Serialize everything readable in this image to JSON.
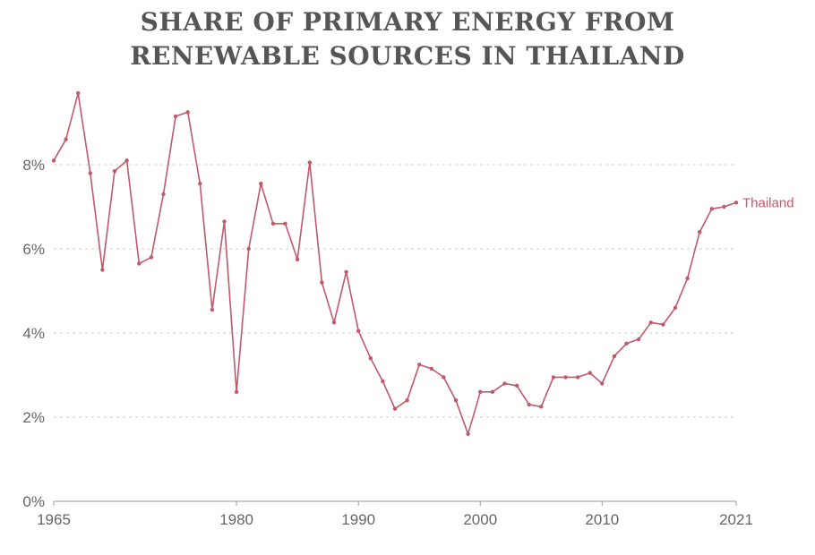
{
  "chart_data": {
    "type": "line",
    "title_lines": [
      "SHARE OF PRIMARY ENERGY FROM",
      "RENEWABLE SOURCES IN THAILAND"
    ],
    "xlabel": "",
    "ylabel": "",
    "xlim": [
      1965,
      2021
    ],
    "ylim": [
      0,
      10
    ],
    "x_ticks": [
      1965,
      1980,
      1990,
      2000,
      2010,
      2021
    ],
    "y_ticks": [
      0,
      2,
      4,
      6,
      8
    ],
    "y_tick_labels": [
      "0%",
      "2%",
      "4%",
      "6%",
      "8%"
    ],
    "grid": "horizontal-dotted",
    "series": [
      {
        "name": "Thailand",
        "color": "#c0596b",
        "x": [
          1965,
          1966,
          1967,
          1968,
          1969,
          1970,
          1971,
          1972,
          1973,
          1974,
          1975,
          1976,
          1977,
          1978,
          1979,
          1980,
          1981,
          1982,
          1983,
          1984,
          1985,
          1986,
          1987,
          1988,
          1989,
          1990,
          1991,
          1992,
          1993,
          1994,
          1995,
          1996,
          1997,
          1998,
          1999,
          2000,
          2001,
          2002,
          2003,
          2004,
          2005,
          2006,
          2007,
          2008,
          2009,
          2010,
          2011,
          2012,
          2013,
          2014,
          2015,
          2016,
          2017,
          2018,
          2019,
          2020,
          2021
        ],
        "y": [
          8.1,
          8.6,
          9.7,
          7.8,
          5.5,
          7.85,
          8.1,
          5.65,
          5.8,
          7.3,
          9.15,
          9.25,
          7.55,
          4.55,
          6.65,
          2.6,
          6.0,
          7.55,
          6.6,
          6.6,
          5.75,
          8.05,
          5.2,
          4.25,
          5.45,
          4.05,
          3.4,
          2.85,
          2.2,
          2.4,
          3.25,
          3.15,
          2.95,
          2.4,
          1.6,
          2.6,
          2.6,
          2.8,
          2.75,
          2.3,
          2.25,
          2.95,
          2.95,
          2.95,
          3.05,
          2.8,
          3.45,
          3.75,
          3.85,
          4.25,
          4.2,
          4.6,
          5.3,
          6.4,
          6.95,
          7.0,
          7.1
        ]
      }
    ]
  }
}
